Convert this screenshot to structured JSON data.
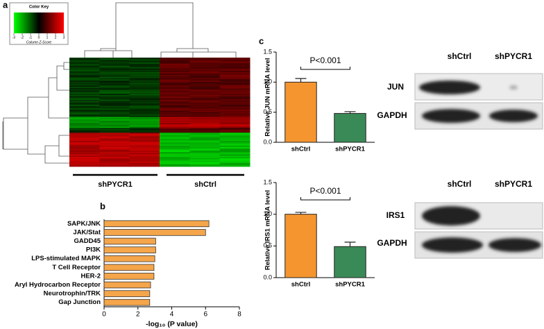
{
  "panel_labels": [
    "a",
    "b",
    "c"
  ],
  "heatmap": {
    "color_key_title": "Color Key",
    "scale_label": "Column Z-Score",
    "ticks": [
      -3,
      -2,
      -1,
      0,
      1,
      2,
      3
    ],
    "groups": [
      "shPYCR1",
      "shCtrl"
    ]
  },
  "blots": [
    {
      "lanes": [
        "shCtrl",
        "shPYCR1"
      ],
      "rows": [
        "JUN",
        "GAPDH"
      ]
    },
    {
      "lanes": [
        "shCtrl",
        "shPYCR1"
      ],
      "rows": [
        "IRS1",
        "GAPDH"
      ]
    }
  ],
  "chart_data": [
    {
      "type": "barh",
      "categories": [
        "SAPK/JNK",
        "JAK/Stat",
        "GADD45",
        "PI3K",
        "LPS-stimulated MAPK",
        "T Cell Receptor",
        "HER-2",
        "Aryl Hydrocarbon Receptor",
        "Neurotrophin/TRK",
        "Gap Junction"
      ],
      "values": [
        6.2,
        6.0,
        3.05,
        3.05,
        3.0,
        2.95,
        2.95,
        2.75,
        2.7,
        2.7
      ],
      "color": "#f5a54a",
      "xlabel": "-log₁₀ (P value)",
      "xlim": [
        0,
        8
      ],
      "xticks": [
        0,
        2,
        4,
        6,
        8
      ]
    },
    {
      "type": "bar",
      "categories": [
        "shCtrl",
        "shPYCR1"
      ],
      "values": [
        1.0,
        0.48
      ],
      "errors": [
        0.06,
        0.03
      ],
      "colors": [
        "#f5952f",
        "#3a8a57"
      ],
      "ylabel": "Relative JUN mRNA level",
      "annotation": "P<0.001",
      "ylim": [
        0,
        1.5
      ],
      "yticks": [
        {
          "value": 0,
          "label": "0.0"
        },
        0.5,
        {
          "value": 1,
          "label": "1.0"
        },
        1.5
      ]
    },
    {
      "type": "bar",
      "categories": [
        "shCtrl",
        "shPYCR1"
      ],
      "values": [
        1.0,
        0.49
      ],
      "errors": [
        0.03,
        0.07
      ],
      "colors": [
        "#f5952f",
        "#3a8a57"
      ],
      "ylabel": "Relative IRS1 mRNA level",
      "annotation": "P<0.001",
      "ylim": [
        0,
        1.5
      ],
      "yticks": [
        {
          "value": 0,
          "label": "0.0"
        },
        0.5,
        {
          "value": 1,
          "label": "1.0"
        },
        1.5
      ]
    }
  ]
}
